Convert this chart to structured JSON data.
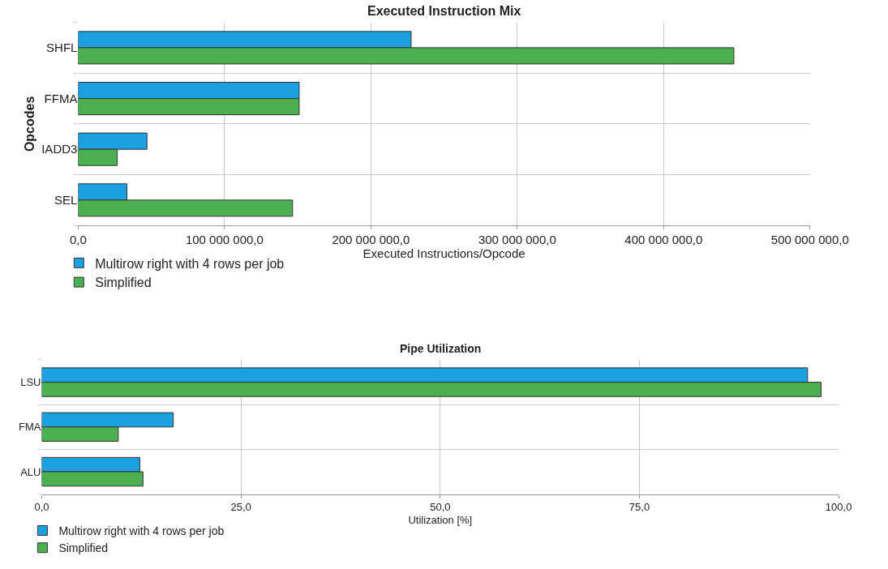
{
  "chart_data": [
    {
      "type": "bar",
      "orientation": "horizontal",
      "title": "Executed Instruction Mix",
      "xlabel": "Executed Instructions/Opcode",
      "ylabel": "Opcodes",
      "categories": [
        "SHFL",
        "FFMA",
        "IADD3",
        "SEL"
      ],
      "series": [
        {
          "name": "Multirow right with 4 rows per job",
          "color": "#1ba1e2",
          "values": [
            227500000,
            151000000,
            47000000,
            33300000
          ]
        },
        {
          "name": "Simplified",
          "color": "#4caf50",
          "values": [
            448000000,
            151000000,
            26700000,
            146500000
          ]
        }
      ],
      "xlim": [
        0,
        500000000
      ],
      "xticks": [
        {
          "value": 0,
          "label": "0,0"
        },
        {
          "value": 100000000,
          "label": "100 000 000,0"
        },
        {
          "value": 200000000,
          "label": "200 000 000,0"
        },
        {
          "value": 300000000,
          "label": "300 000 000,0"
        },
        {
          "value": 400000000,
          "label": "400 000 000,0"
        },
        {
          "value": 500000000,
          "label": "500 000 000,0"
        }
      ],
      "grid": true,
      "legend": "bottom left"
    },
    {
      "type": "bar",
      "orientation": "horizontal",
      "title": "Pipe Utilization",
      "xlabel": "Utilization [%]",
      "categories": [
        "LSU",
        "FMA",
        "ALU"
      ],
      "series": [
        {
          "name": "Multirow right with 4 rows per job",
          "color": "#1ba1e2",
          "values": [
            96.1,
            16.5,
            12.3
          ]
        },
        {
          "name": "Simplified",
          "color": "#4caf50",
          "values": [
            97.8,
            9.6,
            12.7
          ]
        }
      ],
      "xlim": [
        0,
        100
      ],
      "xticks": [
        {
          "value": 0,
          "label": "0,0"
        },
        {
          "value": 25,
          "label": "25,0"
        },
        {
          "value": 50,
          "label": "50,0"
        },
        {
          "value": 75,
          "label": "75,0"
        },
        {
          "value": 100,
          "label": "100,0"
        }
      ],
      "grid": true,
      "legend": "bottom left"
    }
  ]
}
